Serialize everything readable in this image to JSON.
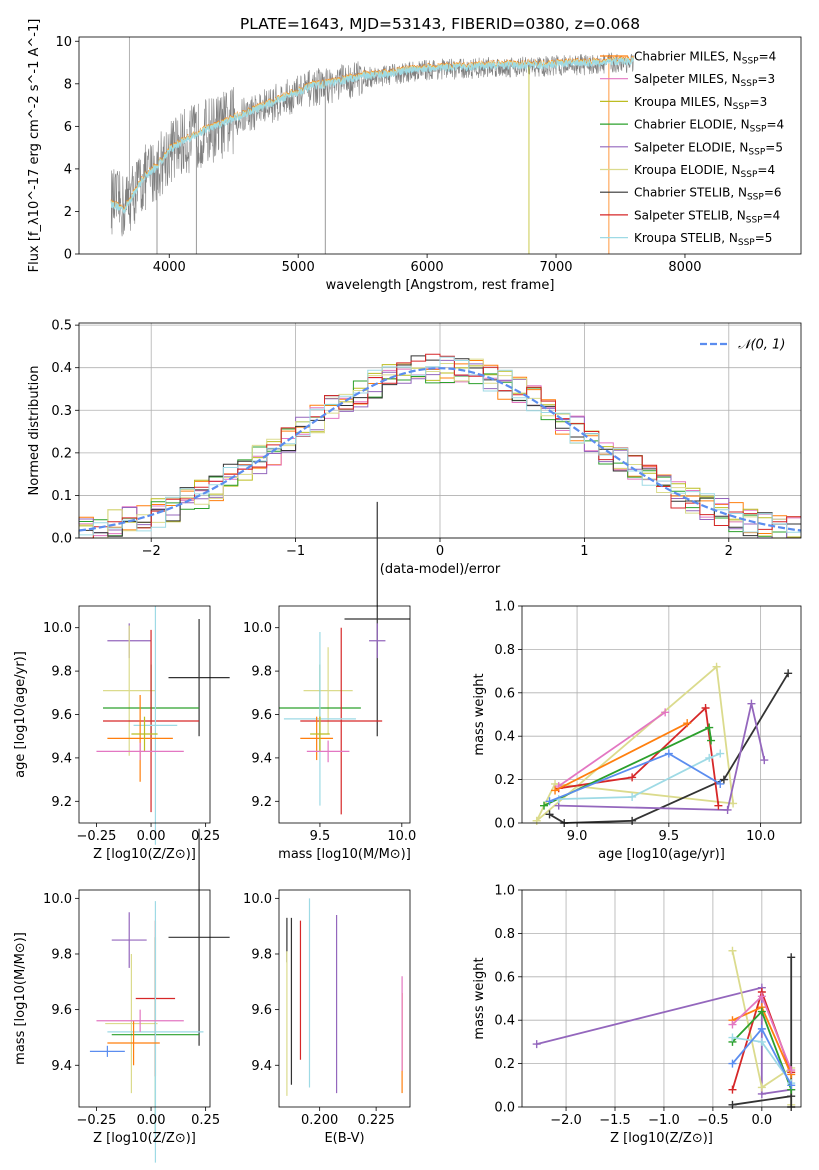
{
  "colors": {
    "Chabrier MILES": "#ff7f0e",
    "Salpeter MILES": "#e377c2",
    "Kroupa MILES": "#bcbd22",
    "Chabrier ELODIE": "#2ca02c",
    "Salpeter ELODIE": "#9467bd",
    "Kroupa ELODIE": "#dbdb8d",
    "Chabrier STELIB": "#333333",
    "Salpeter STELIB": "#d62728",
    "Kroupa STELIB": "#9edae5",
    "gaussian": "#5b8def",
    "data": "#808080"
  },
  "chart_data": [
    {
      "type": "line",
      "title": "PLATE=1643, MJD=53143, FIBERID=0380, z=0.068",
      "xlabel": "wavelength [Angstrom, rest frame]",
      "ylabel": "Flux [f_λ10^-17 erg cm^-2 s^-1 A^-1]",
      "xlim": [
        3300,
        8900
      ],
      "ylim": [
        0,
        10.2
      ],
      "xticks": [
        4000,
        5000,
        6000,
        7000,
        8000
      ],
      "yticks": [
        0,
        2,
        4,
        6,
        8,
        10
      ],
      "grid": false,
      "legend_position": "right",
      "legend": [
        "Chabrier MILES, N_SSP=4",
        "Salpeter MILES, N_SSP=3",
        "Kroupa MILES, N_SSP=3",
        "Chabrier ELODIE, N_SSP=4",
        "Salpeter ELODIE, N_SSP=5",
        "Kroupa ELODIE, N_SSP=4",
        "Chabrier STELIB, N_SSP=6",
        "Salpeter STELIB, N_SSP=4",
        "Kroupa STELIB, N_SSP=5"
      ],
      "x": [
        3550,
        3650,
        3800,
        3900,
        4000,
        4100,
        4200,
        4300,
        4400,
        4500,
        4700,
        4900,
        5100,
        5300,
        5500,
        5700,
        5900,
        6100,
        6300,
        6500,
        6700,
        6900,
        7100,
        7300,
        7500,
        7600
      ],
      "series": [
        {
          "name": "data",
          "values": [
            2.5,
            2.2,
            3.5,
            4.0,
            4.8,
            5.2,
            5.5,
            5.8,
            6.0,
            6.3,
            6.8,
            7.3,
            7.8,
            8.0,
            8.3,
            8.4,
            8.6,
            8.7,
            8.7,
            8.8,
            8.8,
            8.8,
            8.9,
            8.9,
            9.0,
            9.0
          ]
        },
        {
          "name": "model",
          "values": [
            2.4,
            2.1,
            3.6,
            4.1,
            4.9,
            5.3,
            5.6,
            5.9,
            6.1,
            6.4,
            6.9,
            7.4,
            7.9,
            8.1,
            8.4,
            8.5,
            8.7,
            8.8,
            8.8,
            8.9,
            8.9,
            8.9,
            9.0,
            9.0,
            9.1,
            9.1
          ]
        }
      ]
    },
    {
      "type": "line",
      "xlabel": "(data-model)/error",
      "ylabel": "Normed distribution",
      "xlim": [
        -2.5,
        2.5
      ],
      "ylim": [
        0,
        0.505
      ],
      "xticks": [
        -2,
        -1,
        0,
        1,
        2
      ],
      "xtick_labels": [
        "−2",
        "−1",
        "0",
        "1",
        "2"
      ],
      "yticks": [
        0,
        0.1,
        0.2,
        0.3,
        0.4,
        0.5
      ],
      "ytick_labels": [
        "0.0",
        "0.1",
        "0.2",
        "0.3",
        "0.4",
        "0.5"
      ],
      "grid": true,
      "legend_position": "top-right",
      "legend": [
        "𝒩(0, 1)"
      ],
      "bin_width": 0.1,
      "series_name": "N(0,1)"
    },
    {
      "type": "scatter",
      "xlabel": "Z [log10(Z/Z⊙)]",
      "ylabel": "age [log10(age/yr)]",
      "xlim": [
        -0.33,
        0.27
      ],
      "ylim": [
        9.1,
        10.1
      ],
      "xticks": [
        -0.25,
        0,
        0.25
      ],
      "xtick_labels": [
        "−0.25",
        "0.00",
        "0.25"
      ],
      "yticks": [
        9.2,
        9.4,
        9.6,
        9.8,
        10.0
      ],
      "ytick_labels": [
        "9.2",
        "9.4",
        "9.6",
        "9.8",
        "10.0"
      ],
      "points": [
        {
          "model": "Chabrier STELIB",
          "x": 0.22,
          "y": 9.77,
          "xerr": 0.14,
          "yerr": 0.27
        },
        {
          "model": "Salpeter ELODIE",
          "x": -0.1,
          "y": 9.94,
          "xerr": 0.1,
          "yerr": 0.08
        },
        {
          "model": "Kroupa ELODIE",
          "x": -0.1,
          "y": 9.71,
          "xerr": 0.12,
          "yerr": 0.3
        },
        {
          "model": "Chabrier ELODIE",
          "x": 0.0,
          "y": 9.63,
          "xerr": 0.22,
          "yerr": 0.2
        },
        {
          "model": "Salpeter STELIB",
          "x": 0.0,
          "y": 9.57,
          "xerr": 0.22,
          "yerr": 0.42
        },
        {
          "model": "Kroupa STELIB",
          "x": 0.02,
          "y": 9.55,
          "xerr": 0.1,
          "yerr": 0.55
        },
        {
          "model": "Chabrier MILES",
          "x": -0.05,
          "y": 9.49,
          "xerr": 0.15,
          "yerr": 0.2
        },
        {
          "model": "Kroupa MILES",
          "x": -0.03,
          "y": 9.51,
          "xerr": 0.06,
          "yerr": 0.08
        },
        {
          "model": "Salpeter MILES",
          "x": -0.05,
          "y": 9.43,
          "xerr": 0.2,
          "yerr": 0.04
        }
      ]
    },
    {
      "type": "scatter",
      "xlabel": "mass [log10(M/M⊙)]",
      "xlim": [
        9.25,
        10.05
      ],
      "ylim": [
        9.1,
        10.1
      ],
      "xticks": [
        9.5,
        10.0
      ],
      "xtick_labels": [
        "9.5",
        "10.0"
      ],
      "yticks": [
        9.2,
        9.4,
        9.6,
        9.8,
        10.0
      ],
      "ytick_labels": [
        "9.2",
        "9.4",
        "9.6",
        "9.8",
        "10.0"
      ],
      "points": [
        {
          "model": "Chabrier STELIB",
          "x": 9.85,
          "y": 10.04,
          "xerr": 0.2,
          "yerr": 0.54
        },
        {
          "model": "Salpeter ELODIE",
          "x": 9.85,
          "y": 9.94,
          "xerr": 0.05,
          "yerr": 0.08
        },
        {
          "model": "Kroupa ELODIE",
          "x": 9.55,
          "y": 9.71,
          "xerr": 0.15,
          "yerr": 0.2
        },
        {
          "model": "Chabrier ELODIE",
          "x": 9.5,
          "y": 9.63,
          "xerr": 0.25,
          "yerr": 0.2
        },
        {
          "model": "Salpeter STELIB",
          "x": 9.63,
          "y": 9.57,
          "xerr": 0.25,
          "yerr": 0.43
        },
        {
          "model": "Kroupa STELIB",
          "x": 9.5,
          "y": 9.58,
          "xerr": 0.22,
          "yerr": 0.4
        },
        {
          "model": "Chabrier MILES",
          "x": 9.48,
          "y": 9.49,
          "xerr": 0.1,
          "yerr": 0.1
        },
        {
          "model": "Kroupa MILES",
          "x": 9.5,
          "y": 9.51,
          "xerr": 0.06,
          "yerr": 0.08
        },
        {
          "model": "Salpeter MILES",
          "x": 9.55,
          "y": 9.43,
          "xerr": 0.13,
          "yerr": 0.05
        }
      ]
    },
    {
      "type": "line",
      "xlabel": "age  [log10(age/yr)]",
      "ylabel": "mass weight",
      "xlim": [
        8.7,
        10.22
      ],
      "ylim": [
        0,
        1
      ],
      "xticks": [
        9.0,
        9.5,
        10.0
      ],
      "xtick_labels": [
        "9.0",
        "9.5",
        "10.0"
      ],
      "yticks": [
        0,
        0.2,
        0.4,
        0.6,
        0.8,
        1.0
      ],
      "ytick_labels": [
        "0.0",
        "0.2",
        "0.4",
        "0.6",
        "0.8",
        "1.0"
      ],
      "grid": true,
      "series": [
        {
          "model": "Kroupa ELODIE",
          "x": [
            8.78,
            9.76,
            9.85,
            8.88,
            8.78
          ],
          "y": [
            0.01,
            0.72,
            0.09,
            0.18,
            0.01
          ]
        },
        {
          "model": "Chabrier STELIB",
          "x": [
            8.85,
            8.93,
            9.3,
            9.8,
            10.15
          ],
          "y": [
            0.04,
            0.0,
            0.01,
            0.2,
            0.69
          ]
        },
        {
          "model": "Salpeter ELODIE",
          "x": [
            8.9,
            9.82,
            9.95,
            10.02
          ],
          "y": [
            0.08,
            0.06,
            0.55,
            0.29
          ]
        },
        {
          "model": "Salpeter STELIB",
          "x": [
            8.9,
            9.3,
            9.7,
            9.77
          ],
          "y": [
            0.16,
            0.21,
            0.53,
            0.08
          ]
        },
        {
          "model": "Salpeter MILES",
          "x": [
            8.9,
            9.48
          ],
          "y": [
            0.17,
            0.51
          ]
        },
        {
          "model": "Chabrier MILES",
          "x": [
            8.88,
            9.6
          ],
          "y": [
            0.15,
            0.46
          ]
        },
        {
          "model": "Chabrier ELODIE",
          "x": [
            8.82,
            9.72,
            9.73
          ],
          "y": [
            0.08,
            0.44,
            0.38
          ]
        },
        {
          "model": "Kroupa STELIB",
          "x": [
            8.9,
            9.3,
            9.72,
            9.78
          ],
          "y": [
            0.11,
            0.12,
            0.3,
            0.32
          ]
        },
        {
          "model": "Gaussian-blue",
          "x": [
            8.85,
            9.5,
            9.78
          ],
          "y": [
            0.1,
            0.32,
            0.18
          ]
        }
      ]
    },
    {
      "type": "scatter",
      "xlabel": "Z [log10(Z/Z⊙)]",
      "ylabel": "mass [log10(M/M⊙)]",
      "xlim": [
        -0.33,
        0.27
      ],
      "ylim": [
        9.25,
        10.03
      ],
      "xticks": [
        -0.25,
        0,
        0.25
      ],
      "xtick_labels": [
        "−0.25",
        "0.00",
        "0.25"
      ],
      "yticks": [
        9.4,
        9.6,
        9.8,
        10.0
      ],
      "ytick_labels": [
        "9.4",
        "9.6",
        "9.8",
        "10.0"
      ],
      "points": [
        {
          "model": "Chabrier STELIB",
          "x": 0.22,
          "y": 9.86,
          "xerr": 0.14,
          "yerr": 0.39
        },
        {
          "model": "Salpeter ELODIE",
          "x": -0.1,
          "y": 9.85,
          "xerr": 0.08,
          "yerr": 0.1
        },
        {
          "model": "Kroupa ELODIE",
          "x": -0.09,
          "y": 9.55,
          "xerr": 0.12,
          "yerr": 0.25
        },
        {
          "model": "Chabrier ELODIE",
          "x": 0.02,
          "y": 9.51,
          "xerr": 0.2,
          "yerr": 0.35
        },
        {
          "model": "Salpeter STELIB",
          "x": 0.02,
          "y": 9.64,
          "xerr": 0.09,
          "yerr": 0.28
        },
        {
          "model": "Kroupa STELIB",
          "x": 0.02,
          "y": 9.52,
          "xerr": 0.22,
          "yerr": 0.47
        },
        {
          "model": "Chabrier MILES",
          "x": -0.08,
          "y": 9.48,
          "xerr": 0.12,
          "yerr": 0.08
        },
        {
          "model": "Salpeter MILES",
          "x": -0.05,
          "y": 9.56,
          "xerr": 0.2,
          "yerr": 0.04
        },
        {
          "model": "Gaussian-blue",
          "x": -0.2,
          "y": 9.45,
          "xerr": 0.08,
          "yerr": 0.02
        }
      ]
    },
    {
      "type": "scatter",
      "xlabel": "E(B-V)",
      "xlim": [
        0.182,
        0.24
      ],
      "ylim": [
        9.25,
        10.03
      ],
      "xticks": [
        0.2,
        0.225
      ],
      "xtick_labels": [
        "0.200",
        "0.225"
      ],
      "yticks": [
        9.4,
        9.6,
        9.8,
        10.0
      ],
      "ytick_labels": [
        "9.4",
        "9.6",
        "9.8",
        "10.0"
      ],
      "points": [
        {
          "model": "Chabrier STELIB",
          "x": 0.1855,
          "y": 9.85,
          "yerr": 0.08
        },
        {
          "model": "Kroupa ELODIE",
          "x": 0.1855,
          "y": 9.55,
          "yerr": 0.26
        },
        {
          "model": "Chabrier STELIB",
          "x": 0.1875,
          "y": 9.63,
          "yerr": 0.3
        },
        {
          "model": "Salpeter STELIB",
          "x": 0.1915,
          "y": 9.67,
          "yerr": 0.25
        },
        {
          "model": "Kroupa STELIB",
          "x": 0.1955,
          "y": 9.66,
          "yerr": 0.34
        },
        {
          "model": "Salpeter ELODIE",
          "x": 0.2075,
          "y": 9.62,
          "yerr": 0.32
        },
        {
          "model": "Chabrier MILES",
          "x": 0.2365,
          "y": 9.48,
          "yerr": 0.18
        },
        {
          "model": "Salpeter MILES",
          "x": 0.2365,
          "y": 9.55,
          "yerr": 0.17
        }
      ]
    },
    {
      "type": "line",
      "xlabel": "Z [log10(Z/Z⊙)]",
      "ylabel": "mass weight",
      "xlim": [
        -2.45,
        0.4
      ],
      "ylim": [
        0,
        1
      ],
      "xticks": [
        -2.0,
        -1.5,
        -1.0,
        -0.5,
        0.0
      ],
      "xtick_labels": [
        "−2.0",
        "−1.5",
        "−1.0",
        "−0.5",
        "0.0"
      ],
      "yticks": [
        0,
        0.2,
        0.4,
        0.6,
        0.8,
        1.0
      ],
      "ytick_labels": [
        "0.0",
        "0.2",
        "0.4",
        "0.6",
        "0.8",
        "1.0"
      ],
      "grid": true,
      "series": [
        {
          "model": "Salpeter ELODIE",
          "x": [
            -2.3,
            0.0,
            0.0,
            0.3
          ],
          "y": [
            0.29,
            0.55,
            0.06,
            0.08
          ]
        },
        {
          "model": "Kroupa ELODIE",
          "x": [
            -0.3,
            0.0,
            0.3,
            0.3
          ],
          "y": [
            0.72,
            0.09,
            0.18,
            0.01
          ]
        },
        {
          "model": "Chabrier STELIB",
          "x": [
            -0.3,
            0.3,
            0.3,
            0.3
          ],
          "y": [
            0.01,
            0.05,
            0.69,
            0.0
          ]
        },
        {
          "model": "Salpeter STELIB",
          "x": [
            -0.3,
            0.0,
            0.3
          ],
          "y": [
            0.08,
            0.53,
            0.16
          ]
        },
        {
          "model": "Chabrier MILES",
          "x": [
            -0.3,
            0.0,
            0.3
          ],
          "y": [
            0.4,
            0.46,
            0.15
          ]
        },
        {
          "model": "Salpeter MILES",
          "x": [
            -0.3,
            0.0,
            0.3
          ],
          "y": [
            0.38,
            0.51,
            0.17
          ]
        },
        {
          "model": "Chabrier ELODIE",
          "x": [
            -0.3,
            0.0,
            0.3
          ],
          "y": [
            0.3,
            0.44,
            0.08
          ]
        },
        {
          "model": "Kroupa STELIB",
          "x": [
            -0.3,
            0.0,
            0.3
          ],
          "y": [
            0.32,
            0.3,
            0.11
          ]
        },
        {
          "model": "Gaussian-blue",
          "x": [
            -0.3,
            0.0,
            0.3
          ],
          "y": [
            0.2,
            0.36,
            0.1
          ]
        }
      ]
    }
  ]
}
